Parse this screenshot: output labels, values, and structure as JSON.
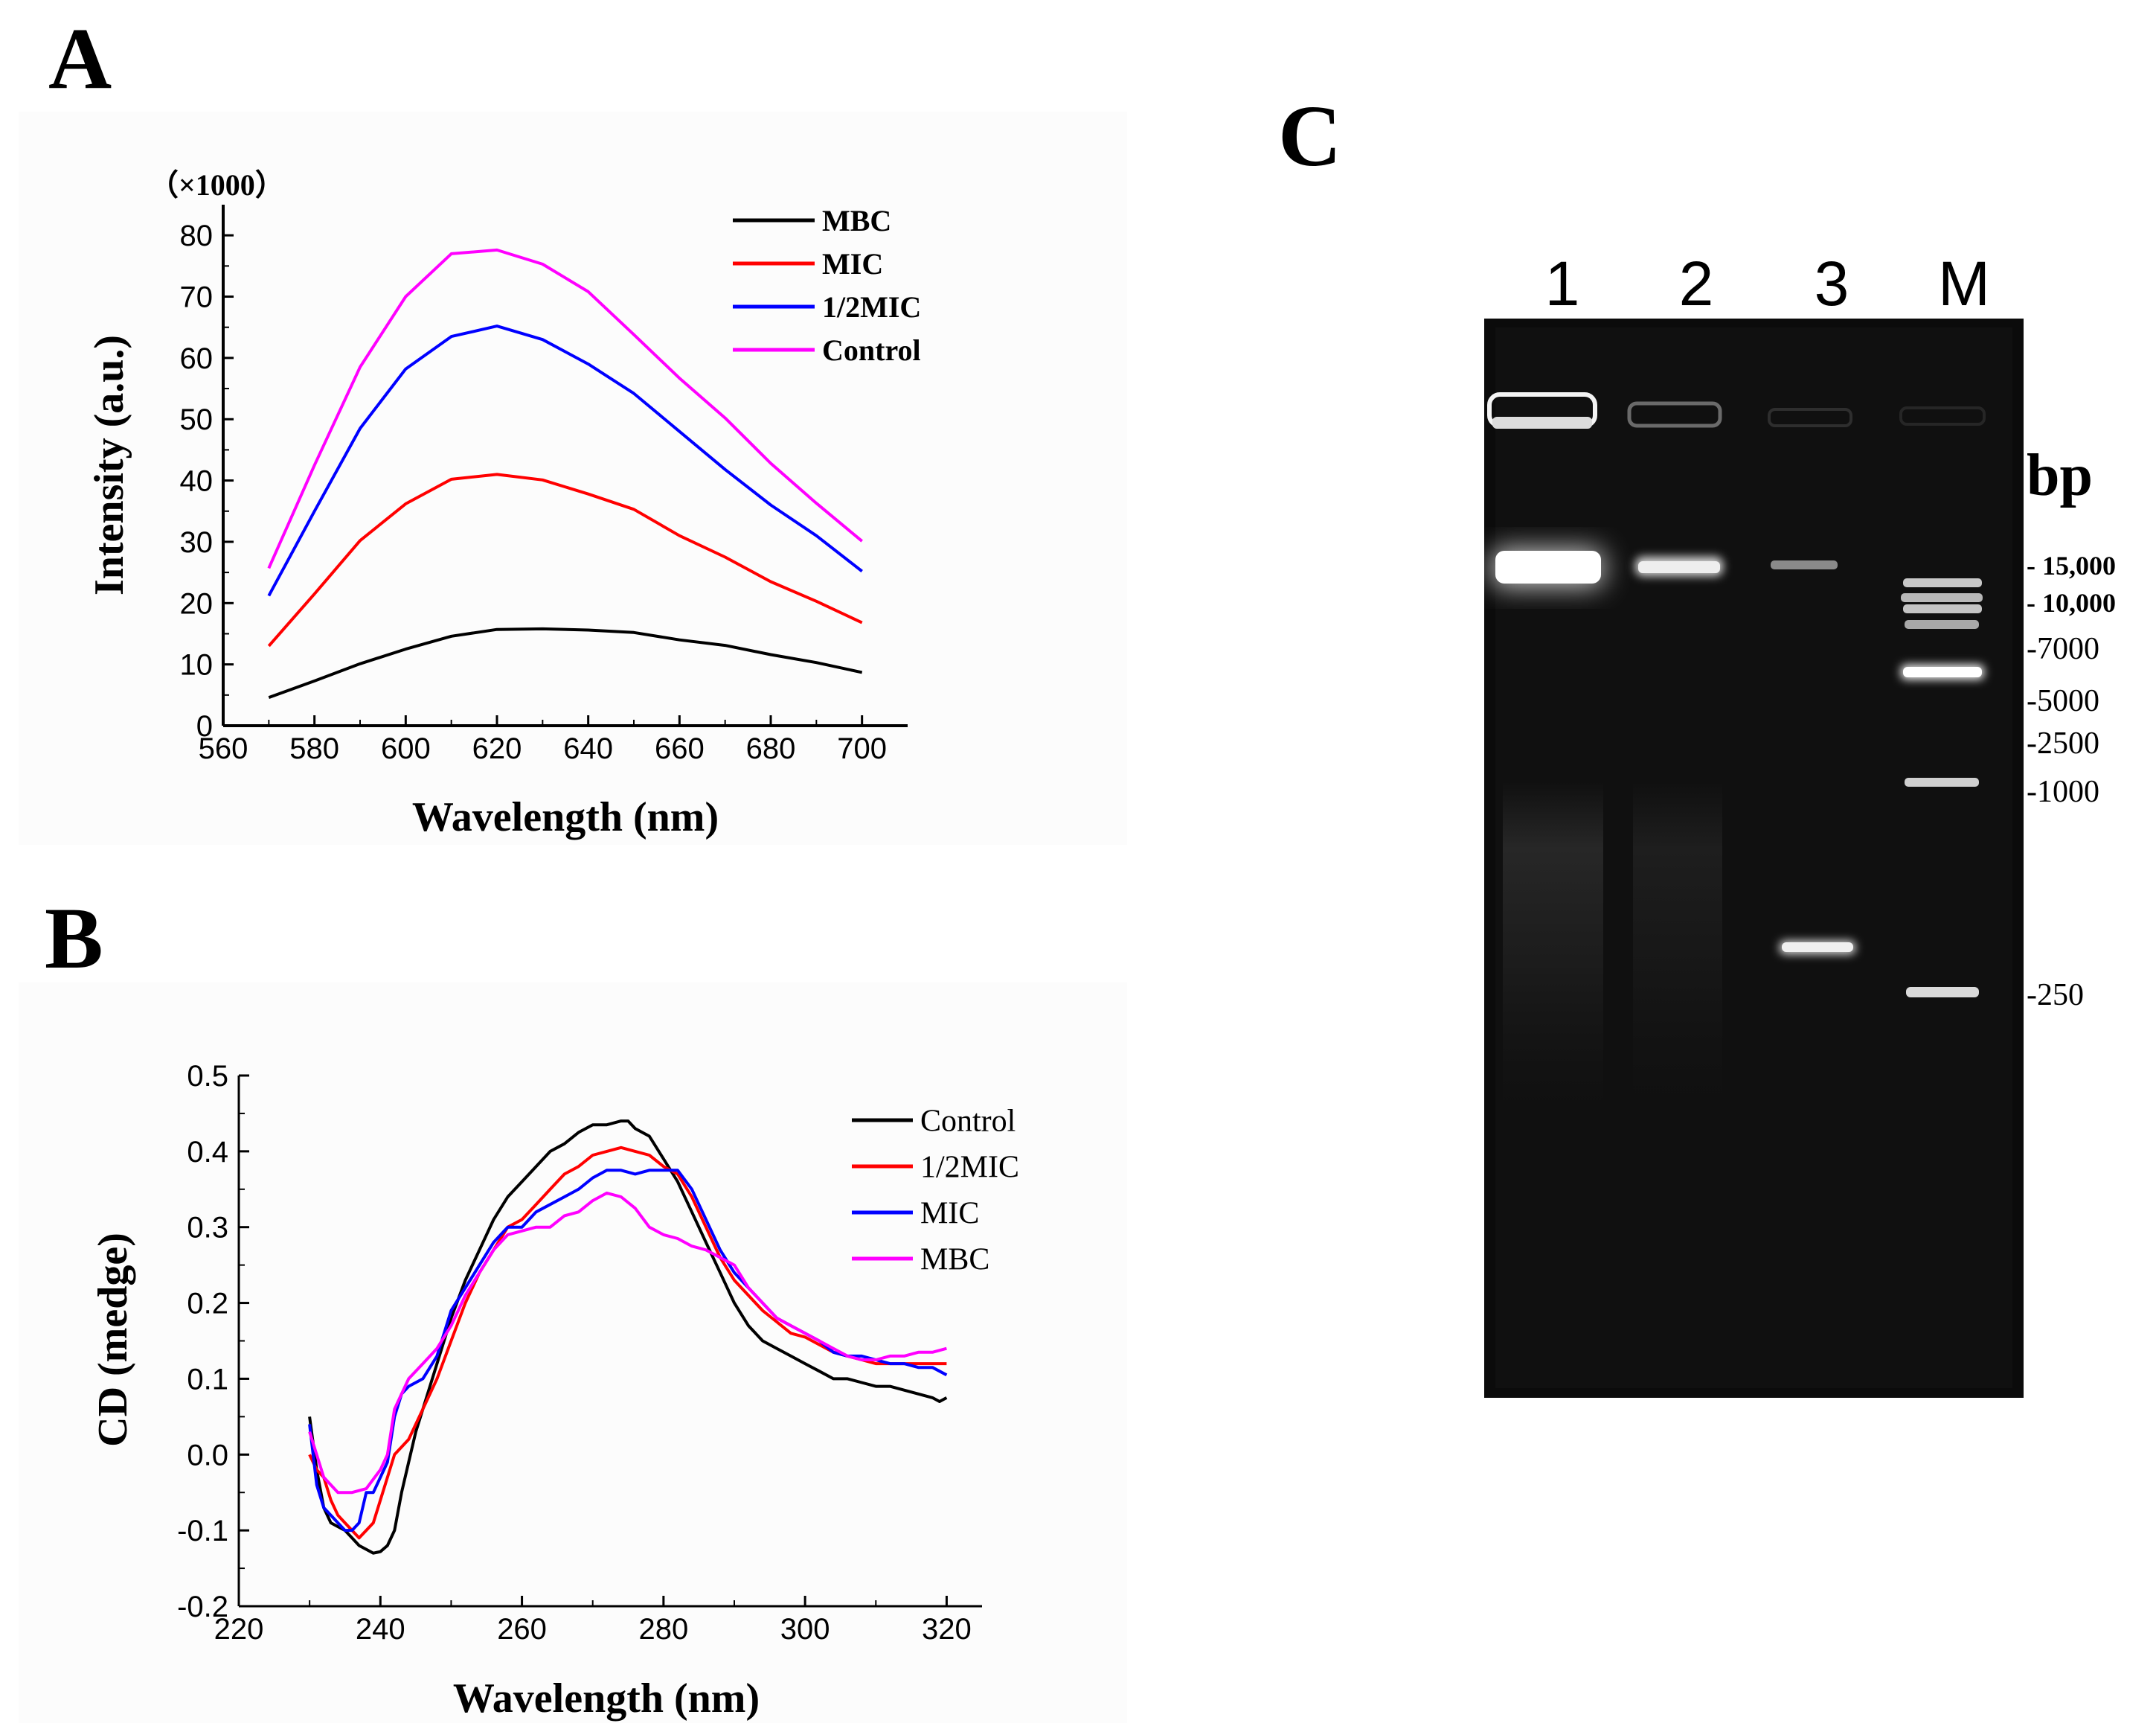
{
  "panels": {
    "a": {
      "letter": "A"
    },
    "b": {
      "letter": "B"
    },
    "c": {
      "letter": "C"
    }
  },
  "chart_data": [
    {
      "id": "a",
      "type": "line",
      "title": "",
      "xlabel": "Wavelength (nm)",
      "ylabel": "Intensity (a.u.)",
      "y_multiplier_label": "（×1000）",
      "xlim": [
        560,
        710
      ],
      "ylim": [
        0,
        85
      ],
      "xticks": [
        560,
        580,
        600,
        620,
        640,
        660,
        680,
        700
      ],
      "yticks": [
        0,
        10,
        20,
        30,
        40,
        50,
        60,
        70,
        80
      ],
      "legend_position": "top-right",
      "x": [
        570,
        580,
        590,
        600,
        610,
        620,
        630,
        640,
        650,
        660,
        670,
        680,
        690,
        700
      ],
      "series": [
        {
          "name": "MBC",
          "color": "#000000",
          "values": [
            4.6,
            7.3,
            10.1,
            12.5,
            14.6,
            15.7,
            15.8,
            15.6,
            15.2,
            14.0,
            13.1,
            11.6,
            10.3,
            8.7
          ]
        },
        {
          "name": "MIC",
          "color": "#ff0000",
          "values": [
            13.0,
            21.5,
            30.2,
            36.2,
            40.2,
            41.0,
            40.1,
            37.8,
            35.3,
            31.0,
            27.5,
            23.5,
            20.3,
            16.8
          ]
        },
        {
          "name": "1/2MIC",
          "color": "#0000ff",
          "values": [
            21.2,
            35.0,
            48.5,
            58.2,
            63.5,
            65.2,
            63.0,
            59.0,
            54.2,
            48.0,
            41.8,
            36.0,
            31.0,
            25.2
          ]
        },
        {
          "name": "Control",
          "color": "#ff00ff",
          "values": [
            25.7,
            42.5,
            58.5,
            70.0,
            77.0,
            77.6,
            75.3,
            70.8,
            63.8,
            56.7,
            50.2,
            42.8,
            36.3,
            30.1
          ]
        }
      ]
    },
    {
      "id": "b",
      "type": "line",
      "title": "",
      "xlabel": "Wavelength (nm)",
      "ylabel": "CD (medge)",
      "xlim": [
        220,
        325
      ],
      "ylim": [
        -0.2,
        0.5
      ],
      "xticks": [
        220,
        240,
        260,
        280,
        300,
        320
      ],
      "yticks": [
        -0.2,
        -0.1,
        0.0,
        0.1,
        0.2,
        0.3,
        0.4,
        0.5
      ],
      "y_tick_labels": [
        "-0.2",
        "-0.1",
        "0.0",
        "0.1",
        "0.2",
        "0.3",
        "0.4",
        "0.5"
      ],
      "legend_position": "right",
      "series": [
        {
          "name": "Control",
          "color": "#000000",
          "x": [
            230,
            231,
            232,
            233,
            234,
            235,
            236,
            237,
            238,
            239,
            240,
            241,
            242,
            243,
            244,
            245,
            246,
            248,
            250,
            252,
            254,
            256,
            258,
            260,
            262,
            264,
            266,
            268,
            270,
            272,
            274,
            275,
            276,
            278,
            280,
            282,
            284,
            286,
            288,
            290,
            292,
            294,
            296,
            298,
            300,
            302,
            304,
            306,
            308,
            310,
            312,
            314,
            316,
            318,
            319,
            320
          ],
          "y": [
            0.05,
            -0.02,
            -0.07,
            -0.09,
            -0.095,
            -0.1,
            -0.11,
            -0.12,
            -0.125,
            -0.13,
            -0.128,
            -0.12,
            -0.1,
            -0.05,
            -0.01,
            0.03,
            0.06,
            0.12,
            0.18,
            0.23,
            0.27,
            0.31,
            0.34,
            0.36,
            0.38,
            0.4,
            0.41,
            0.425,
            0.435,
            0.435,
            0.44,
            0.44,
            0.43,
            0.42,
            0.39,
            0.36,
            0.32,
            0.28,
            0.24,
            0.2,
            0.17,
            0.15,
            0.14,
            0.13,
            0.12,
            0.11,
            0.1,
            0.1,
            0.095,
            0.09,
            0.09,
            0.085,
            0.08,
            0.075,
            0.07,
            0.075
          ]
        },
        {
          "name": "1/2MIC",
          "color": "#ff0000",
          "x": [
            230,
            231,
            232,
            233,
            234,
            235,
            236,
            237,
            238,
            239,
            240,
            241,
            242,
            244,
            246,
            248,
            250,
            252,
            254,
            256,
            258,
            260,
            262,
            264,
            266,
            268,
            270,
            272,
            274,
            276,
            278,
            280,
            282,
            284,
            286,
            288,
            290,
            292,
            294,
            296,
            298,
            300,
            302,
            304,
            306,
            308,
            310,
            312,
            314,
            316,
            318,
            320
          ],
          "y": [
            0.0,
            -0.02,
            -0.03,
            -0.06,
            -0.08,
            -0.09,
            -0.1,
            -0.11,
            -0.1,
            -0.09,
            -0.06,
            -0.03,
            0.0,
            0.02,
            0.06,
            0.1,
            0.15,
            0.2,
            0.24,
            0.27,
            0.3,
            0.31,
            0.33,
            0.35,
            0.37,
            0.38,
            0.395,
            0.4,
            0.405,
            0.4,
            0.395,
            0.38,
            0.37,
            0.34,
            0.3,
            0.26,
            0.23,
            0.21,
            0.19,
            0.175,
            0.16,
            0.155,
            0.145,
            0.135,
            0.13,
            0.125,
            0.12,
            0.12,
            0.12,
            0.12,
            0.12,
            0.12
          ]
        },
        {
          "name": "MIC",
          "color": "#0000ff",
          "x": [
            230,
            231,
            232,
            233,
            234,
            235,
            236,
            237,
            238,
            239,
            240,
            241,
            242,
            243,
            244,
            246,
            248,
            250,
            252,
            254,
            256,
            258,
            260,
            262,
            264,
            266,
            268,
            270,
            272,
            274,
            276,
            278,
            280,
            282,
            284,
            286,
            288,
            290,
            292,
            294,
            296,
            298,
            300,
            302,
            304,
            306,
            308,
            310,
            312,
            314,
            316,
            318,
            320
          ],
          "y": [
            0.04,
            -0.04,
            -0.07,
            -0.08,
            -0.09,
            -0.1,
            -0.1,
            -0.09,
            -0.05,
            -0.05,
            -0.03,
            -0.01,
            0.05,
            0.08,
            0.09,
            0.1,
            0.13,
            0.19,
            0.22,
            0.25,
            0.28,
            0.3,
            0.3,
            0.32,
            0.33,
            0.34,
            0.35,
            0.365,
            0.375,
            0.375,
            0.37,
            0.375,
            0.375,
            0.375,
            0.35,
            0.31,
            0.27,
            0.24,
            0.22,
            0.2,
            0.18,
            0.17,
            0.16,
            0.15,
            0.135,
            0.13,
            0.13,
            0.125,
            0.12,
            0.12,
            0.115,
            0.115,
            0.105
          ]
        },
        {
          "name": "MBC",
          "color": "#ff00ff",
          "x": [
            230,
            232,
            234,
            236,
            238,
            240,
            241,
            242,
            244,
            246,
            248,
            250,
            252,
            254,
            256,
            258,
            260,
            262,
            264,
            266,
            268,
            270,
            272,
            274,
            276,
            278,
            280,
            282,
            284,
            286,
            288,
            290,
            292,
            294,
            296,
            298,
            300,
            302,
            304,
            306,
            308,
            310,
            312,
            314,
            316,
            318,
            320
          ],
          "y": [
            0.03,
            -0.03,
            -0.05,
            -0.05,
            -0.045,
            -0.02,
            0.0,
            0.06,
            0.1,
            0.12,
            0.14,
            0.17,
            0.21,
            0.24,
            0.27,
            0.29,
            0.295,
            0.3,
            0.3,
            0.315,
            0.32,
            0.335,
            0.345,
            0.34,
            0.325,
            0.3,
            0.29,
            0.285,
            0.275,
            0.27,
            0.26,
            0.25,
            0.22,
            0.2,
            0.18,
            0.17,
            0.16,
            0.15,
            0.14,
            0.13,
            0.125,
            0.125,
            0.13,
            0.13,
            0.135,
            0.135,
            0.14
          ]
        }
      ]
    },
    {
      "id": "c",
      "type": "gel",
      "lanes": [
        "1",
        "2",
        "3",
        "M"
      ],
      "unit_label": "bp",
      "marker_labels": [
        "- 15,000",
        "- 10,000",
        "-7000",
        "-5000",
        "-2500",
        "-1000",
        "-250"
      ]
    }
  ]
}
